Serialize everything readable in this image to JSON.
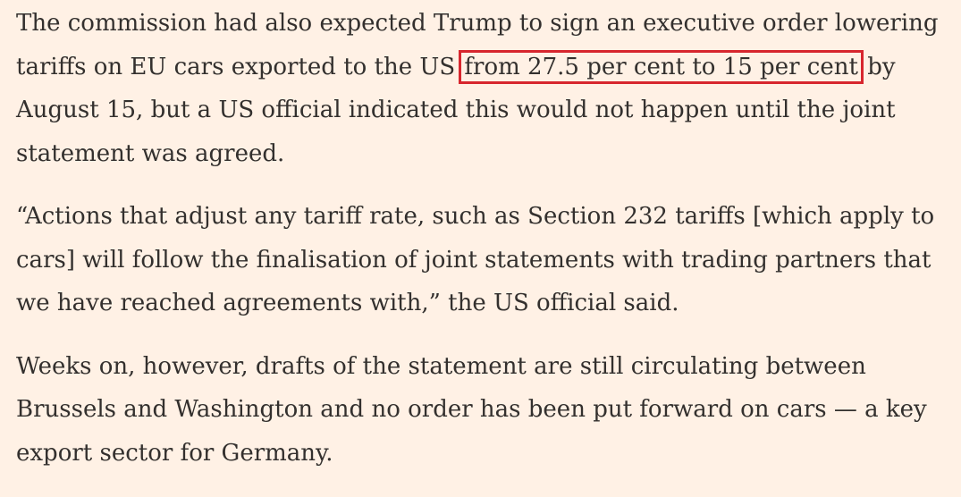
{
  "article": {
    "paragraphs": [
      {
        "lines": [
          "The commission had also expected Trump to sign an executive order lowering",
          "tariffs on EU cars exported to the US ",
          "by",
          "August 15, but a US official indicated this would not happen until the joint",
          "statement was agreed."
        ],
        "highlight": "from 27.5 per cent to 15 per cent"
      },
      {
        "lines": [
          "“Actions that adjust any tariff rate, such as Section 232 tariffs [which apply to",
          "cars] will follow the finalisation of joint statements with trading partners that",
          "we have reached agreements with,” the US official said."
        ]
      },
      {
        "lines": [
          "Weeks on, however, drafts of the statement are still circulating between",
          "Brussels and Washington and no order has been put forward on cars — a key",
          "export sector for Germany."
        ]
      }
    ],
    "highlight_color": "#d7262e",
    "background_color": "#fff1e5",
    "text_color": "#33302e"
  }
}
